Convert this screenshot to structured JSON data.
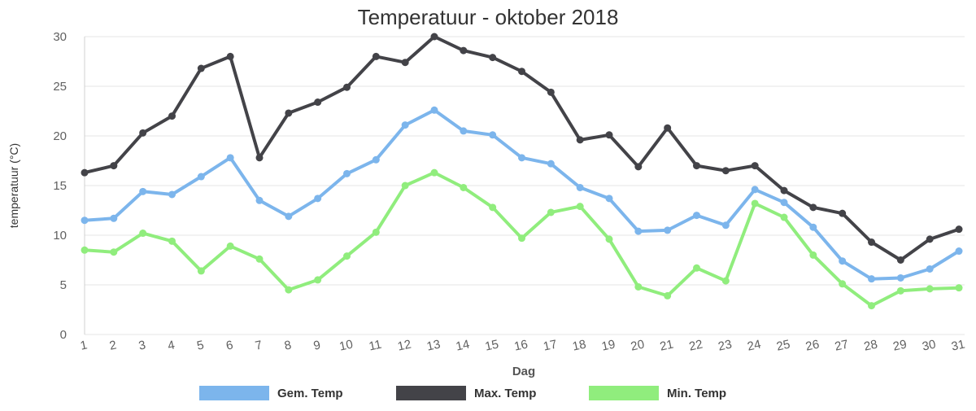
{
  "chart_data": {
    "type": "line",
    "title": "Temperatuur - oktober 2018",
    "xlabel": "Dag",
    "ylabel": "temperatuur (°C)",
    "ylim": [
      0,
      30
    ],
    "yticks": [
      0,
      5,
      10,
      15,
      20,
      25,
      30
    ],
    "grid": true,
    "legend_position": "bottom",
    "categories": [
      "1",
      "2",
      "3",
      "4",
      "5",
      "6",
      "7",
      "8",
      "9",
      "10",
      "11",
      "12",
      "13",
      "14",
      "15",
      "16",
      "17",
      "18",
      "19",
      "20",
      "21",
      "22",
      "23",
      "24",
      "25",
      "26",
      "27",
      "28",
      "29",
      "30",
      "31"
    ],
    "series": [
      {
        "name": "Gem. Temp",
        "color": "#7cb5ec",
        "values": [
          11.5,
          11.7,
          14.4,
          14.1,
          15.9,
          17.8,
          13.5,
          11.9,
          13.7,
          16.2,
          17.6,
          21.1,
          22.6,
          20.5,
          20.1,
          17.8,
          17.2,
          14.8,
          13.7,
          10.4,
          10.5,
          12.0,
          11.0,
          14.6,
          13.3,
          10.8,
          7.4,
          5.6,
          5.7,
          6.6,
          8.4
        ]
      },
      {
        "name": "Max. Temp",
        "color": "#434348",
        "values": [
          16.3,
          17.0,
          20.3,
          22.0,
          26.8,
          28.0,
          17.8,
          22.3,
          23.4,
          24.9,
          28.0,
          27.4,
          30.0,
          28.6,
          27.9,
          26.5,
          24.4,
          19.6,
          20.1,
          16.9,
          20.8,
          17.0,
          16.5,
          17.0,
          14.5,
          12.8,
          12.2,
          9.3,
          7.5,
          9.6,
          10.6
        ]
      },
      {
        "name": "Min. Temp",
        "color": "#90ed7d",
        "values": [
          8.5,
          8.3,
          10.2,
          9.4,
          6.4,
          8.9,
          7.6,
          4.5,
          5.5,
          7.9,
          10.3,
          15.0,
          16.3,
          14.8,
          12.8,
          9.7,
          12.3,
          12.9,
          9.6,
          4.8,
          3.9,
          6.7,
          5.4,
          13.2,
          11.8,
          8.0,
          5.1,
          2.9,
          4.4,
          4.6,
          4.7
        ]
      }
    ]
  }
}
